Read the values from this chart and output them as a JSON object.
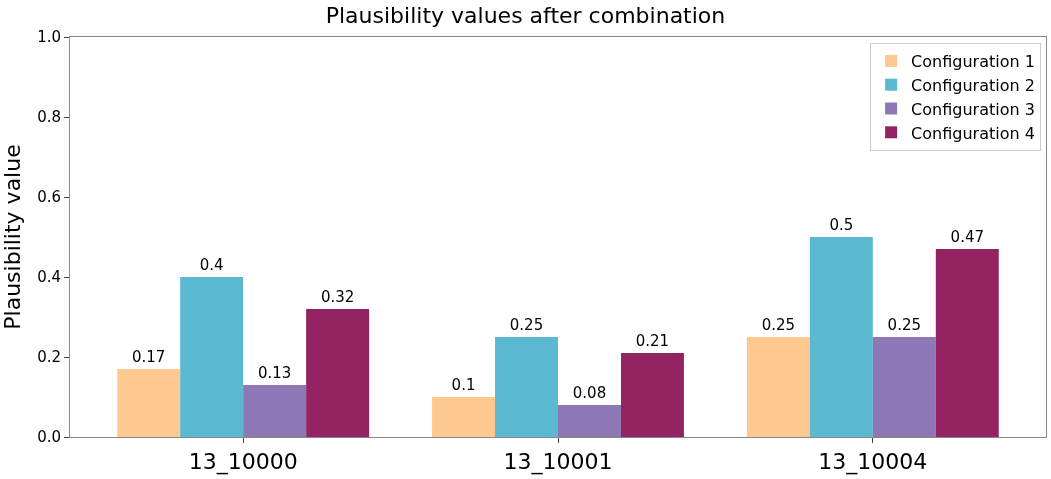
{
  "chart_data": {
    "type": "bar",
    "title": "Plausibility values after combination",
    "ylabel": "Plausibility value",
    "categories": [
      "13_10000",
      "13_10001",
      "13_10004"
    ],
    "series": [
      {
        "name": "Configuration 1",
        "color": "#fdc991",
        "values": [
          0.17,
          0.1,
          0.25
        ]
      },
      {
        "name": "Configuration 2",
        "color": "#5ab8d0",
        "values": [
          0.4,
          0.25,
          0.5
        ]
      },
      {
        "name": "Configuration 3",
        "color": "#8e77b5",
        "values": [
          0.13,
          0.08,
          0.25
        ]
      },
      {
        "name": "Configuration 4",
        "color": "#942364",
        "values": [
          0.32,
          0.21,
          0.47
        ]
      }
    ],
    "ylim": [
      0,
      1
    ],
    "yticks": [
      {
        "value": 0,
        "label": "0.0"
      },
      {
        "value": 0.2,
        "label": "0.2"
      },
      {
        "value": 0.4,
        "label": "0.4"
      },
      {
        "value": 0.6,
        "label": "0.6"
      },
      {
        "value": 0.8,
        "label": "0.8"
      },
      {
        "value": 1,
        "label": "1.0"
      }
    ],
    "data_labels": true,
    "legend": "top right"
  }
}
